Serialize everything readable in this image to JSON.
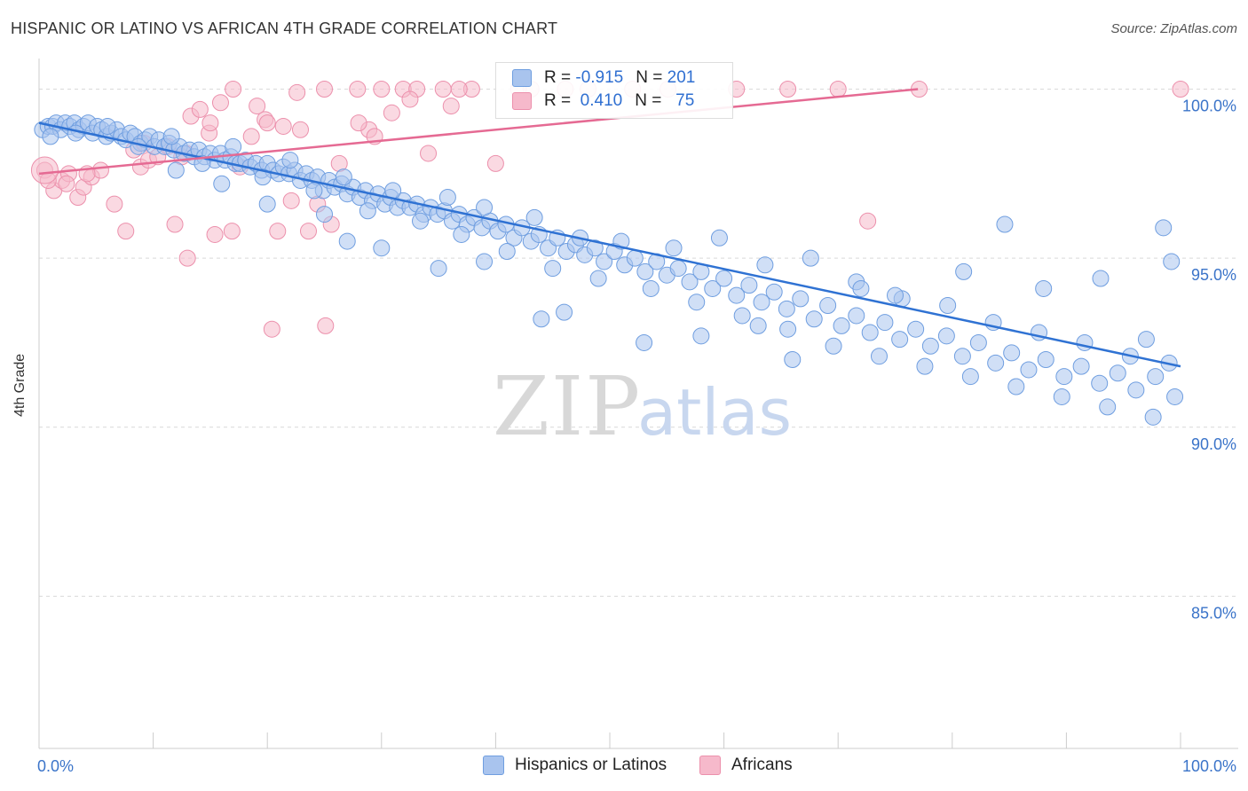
{
  "title": "HISPANIC OR LATINO VS AFRICAN 4TH GRADE CORRELATION CHART",
  "source": "Source: ZipAtlas.com",
  "watermark": {
    "zip": "ZIP",
    "atlas": "atlas"
  },
  "colors": {
    "blue_fill": "#a9c4ee",
    "blue_stroke": "#6f9ee0",
    "blue_line": "#2f72d3",
    "pink_fill": "#f6b9cb",
    "pink_stroke": "#ec90ac",
    "pink_line": "#e56a93",
    "label_blue": "#3b74c9",
    "grid": "#d9d9d9"
  },
  "legend": {
    "rows": [
      {
        "r_label": "R = ",
        "r_value": "-0.915",
        "n_label": "N = ",
        "n_value": "201"
      },
      {
        "r_label": "R = ",
        "r_value": " 0.410",
        "n_label": "N = ",
        "n_value": "  75"
      }
    ]
  },
  "bottom_legend": [
    "Hispanics or Latinos",
    "Africans"
  ],
  "chart_data": {
    "type": "scatter",
    "ylabel": "4th Grade",
    "xlim": [
      0,
      100
    ],
    "ylim": [
      80.5,
      100.8
    ],
    "x_tick_labels": [
      "0.0%",
      "100.0%"
    ],
    "y_ticks": [
      85,
      90,
      95,
      100
    ],
    "y_tick_labels": [
      "85.0%",
      "90.0%",
      "95.0%",
      "100.0%"
    ],
    "grid": "horizontal dashed",
    "legend_position": "top-center",
    "series": [
      {
        "name": "Hispanics or Latinos",
        "color": "blue",
        "r": -0.915,
        "n": 201,
        "trend": {
          "x": [
            0,
            100
          ],
          "y": [
            99.0,
            91.8
          ]
        },
        "points": [
          [
            0.3,
            98.8
          ],
          [
            0.8,
            98.9
          ],
          [
            1.2,
            98.9
          ],
          [
            1.5,
            99.0
          ],
          [
            1.9,
            98.8
          ],
          [
            2.3,
            99.0
          ],
          [
            2.7,
            98.9
          ],
          [
            3.1,
            99.0
          ],
          [
            3.5,
            98.8
          ],
          [
            3.9,
            98.9
          ],
          [
            4.3,
            99.0
          ],
          [
            4.7,
            98.7
          ],
          [
            5.1,
            98.9
          ],
          [
            5.5,
            98.8
          ],
          [
            5.9,
            98.6
          ],
          [
            6.3,
            98.7
          ],
          [
            6.8,
            98.8
          ],
          [
            7.2,
            98.6
          ],
          [
            7.6,
            98.5
          ],
          [
            8.0,
            98.7
          ],
          [
            8.4,
            98.6
          ],
          [
            8.9,
            98.4
          ],
          [
            9.3,
            98.5
          ],
          [
            9.7,
            98.6
          ],
          [
            10.1,
            98.3
          ],
          [
            10.5,
            98.5
          ],
          [
            11.0,
            98.3
          ],
          [
            11.4,
            98.4
          ],
          [
            11.8,
            98.2
          ],
          [
            12.3,
            98.3
          ],
          [
            12.7,
            98.1
          ],
          [
            13.2,
            98.2
          ],
          [
            13.6,
            98.0
          ],
          [
            14.0,
            98.2
          ],
          [
            14.5,
            98.0
          ],
          [
            15.0,
            98.1
          ],
          [
            15.4,
            97.9
          ],
          [
            15.9,
            98.1
          ],
          [
            16.3,
            97.9
          ],
          [
            16.8,
            98.0
          ],
          [
            17.2,
            97.8
          ],
          [
            17.6,
            97.8
          ],
          [
            18.1,
            97.9
          ],
          [
            18.5,
            97.7
          ],
          [
            19.0,
            97.8
          ],
          [
            19.5,
            97.6
          ],
          [
            20.0,
            97.8
          ],
          [
            20.5,
            97.6
          ],
          [
            21.0,
            97.5
          ],
          [
            21.4,
            97.7
          ],
          [
            21.9,
            97.5
          ],
          [
            22.4,
            97.6
          ],
          [
            22.9,
            97.3
          ],
          [
            23.4,
            97.5
          ],
          [
            23.9,
            97.3
          ],
          [
            24.4,
            97.4
          ],
          [
            24.9,
            97.0
          ],
          [
            25.4,
            97.3
          ],
          [
            25.9,
            97.1
          ],
          [
            26.5,
            97.2
          ],
          [
            27.0,
            96.9
          ],
          [
            27.5,
            97.1
          ],
          [
            28.1,
            96.8
          ],
          [
            28.6,
            97.0
          ],
          [
            29.2,
            96.7
          ],
          [
            29.7,
            96.9
          ],
          [
            30.3,
            96.6
          ],
          [
            30.8,
            96.8
          ],
          [
            31.4,
            96.5
          ],
          [
            31.9,
            96.7
          ],
          [
            32.5,
            96.5
          ],
          [
            33.1,
            96.6
          ],
          [
            33.7,
            96.3
          ],
          [
            34.3,
            96.5
          ],
          [
            34.9,
            96.3
          ],
          [
            35.5,
            96.4
          ],
          [
            36.2,
            96.1
          ],
          [
            36.8,
            96.3
          ],
          [
            37.5,
            96.0
          ],
          [
            38.1,
            96.2
          ],
          [
            38.8,
            95.9
          ],
          [
            39.5,
            96.1
          ],
          [
            40.2,
            95.8
          ],
          [
            40.9,
            96.0
          ],
          [
            41.6,
            95.6
          ],
          [
            42.3,
            95.9
          ],
          [
            43.1,
            95.5
          ],
          [
            43.8,
            95.7
          ],
          [
            44.6,
            95.3
          ],
          [
            45.4,
            95.6
          ],
          [
            46.2,
            95.2
          ],
          [
            47.0,
            95.4
          ],
          [
            47.8,
            95.1
          ],
          [
            48.7,
            95.3
          ],
          [
            49.5,
            94.9
          ],
          [
            50.4,
            95.2
          ],
          [
            51.3,
            94.8
          ],
          [
            52.2,
            95.0
          ],
          [
            53.1,
            94.6
          ],
          [
            54.1,
            94.9
          ],
          [
            55.0,
            94.5
          ],
          [
            56.0,
            94.7
          ],
          [
            57.0,
            94.3
          ],
          [
            58.0,
            94.6
          ],
          [
            59.0,
            94.1
          ],
          [
            60.0,
            94.4
          ],
          [
            61.1,
            93.9
          ],
          [
            62.2,
            94.2
          ],
          [
            63.3,
            93.7
          ],
          [
            64.4,
            94.0
          ],
          [
            65.5,
            93.5
          ],
          [
            66.7,
            93.8
          ],
          [
            67.9,
            93.2
          ],
          [
            69.1,
            93.6
          ],
          [
            70.3,
            93.0
          ],
          [
            71.6,
            93.3
          ],
          [
            72.8,
            92.8
          ],
          [
            74.1,
            93.1
          ],
          [
            75.4,
            92.6
          ],
          [
            76.8,
            92.9
          ],
          [
            78.1,
            92.4
          ],
          [
            79.5,
            92.7
          ],
          [
            80.9,
            92.1
          ],
          [
            82.3,
            92.5
          ],
          [
            83.8,
            91.9
          ],
          [
            85.2,
            92.2
          ],
          [
            86.7,
            91.7
          ],
          [
            88.2,
            92.0
          ],
          [
            89.8,
            91.5
          ],
          [
            91.3,
            91.8
          ],
          [
            92.9,
            91.3
          ],
          [
            94.5,
            91.6
          ],
          [
            96.1,
            91.1
          ],
          [
            97.8,
            91.5
          ],
          [
            99.5,
            90.9
          ],
          [
            1.0,
            98.6
          ],
          [
            3.2,
            98.7
          ],
          [
            6.0,
            98.9
          ],
          [
            8.7,
            98.3
          ],
          [
            11.6,
            98.6
          ],
          [
            14.3,
            97.8
          ],
          [
            17.0,
            98.3
          ],
          [
            19.6,
            97.4
          ],
          [
            22.0,
            97.9
          ],
          [
            24.1,
            97.0
          ],
          [
            26.7,
            97.4
          ],
          [
            28.8,
            96.4
          ],
          [
            31.0,
            97.0
          ],
          [
            33.4,
            96.1
          ],
          [
            35.8,
            96.8
          ],
          [
            37.0,
            95.7
          ],
          [
            39.0,
            96.5
          ],
          [
            41.0,
            95.2
          ],
          [
            43.4,
            96.2
          ],
          [
            45.0,
            94.7
          ],
          [
            47.4,
            95.6
          ],
          [
            49.0,
            94.4
          ],
          [
            51.0,
            95.5
          ],
          [
            53.6,
            94.1
          ],
          [
            55.6,
            95.3
          ],
          [
            57.6,
            93.7
          ],
          [
            59.6,
            95.6
          ],
          [
            61.6,
            93.3
          ],
          [
            63.6,
            94.8
          ],
          [
            65.6,
            92.9
          ],
          [
            67.6,
            95.0
          ],
          [
            69.6,
            92.4
          ],
          [
            71.6,
            94.3
          ],
          [
            73.6,
            92.1
          ],
          [
            75.6,
            93.8
          ],
          [
            77.6,
            91.8
          ],
          [
            79.6,
            93.6
          ],
          [
            81.6,
            91.5
          ],
          [
            83.6,
            93.1
          ],
          [
            85.6,
            91.2
          ],
          [
            87.6,
            92.8
          ],
          [
            89.6,
            90.9
          ],
          [
            91.6,
            92.5
          ],
          [
            93.6,
            90.6
          ],
          [
            95.6,
            92.1
          ],
          [
            97.6,
            90.3
          ],
          [
            99.0,
            91.9
          ],
          [
            84.6,
            96.0
          ],
          [
            98.5,
            95.9
          ],
          [
            99.2,
            94.9
          ],
          [
            97.0,
            92.6
          ],
          [
            93.0,
            94.4
          ],
          [
            88.0,
            94.1
          ],
          [
            81.0,
            94.6
          ],
          [
            75.0,
            93.9
          ],
          [
            72.0,
            94.1
          ],
          [
            66.0,
            92.0
          ],
          [
            63.0,
            93.0
          ],
          [
            58.0,
            92.7
          ],
          [
            53.0,
            92.5
          ],
          [
            46.0,
            93.4
          ],
          [
            44.0,
            93.2
          ],
          [
            39.0,
            94.9
          ],
          [
            35.0,
            94.7
          ],
          [
            30.0,
            95.3
          ],
          [
            27.0,
            95.5
          ],
          [
            25.0,
            96.3
          ],
          [
            20.0,
            96.6
          ],
          [
            16.0,
            97.2
          ],
          [
            12.0,
            97.6
          ]
        ]
      },
      {
        "name": "Africans",
        "color": "pink",
        "r": 0.41,
        "n": 75,
        "trend": {
          "x": [
            0,
            77
          ],
          "y": [
            97.5,
            100.0
          ]
        },
        "points": [
          [
            0.5,
            97.6
          ],
          [
            1.3,
            97.0
          ],
          [
            2.0,
            97.3
          ],
          [
            2.6,
            97.5
          ],
          [
            3.4,
            96.8
          ],
          [
            3.9,
            97.1
          ],
          [
            4.6,
            97.4
          ],
          [
            5.4,
            97.6
          ],
          [
            6.6,
            96.6
          ],
          [
            7.6,
            95.8
          ],
          [
            8.3,
            98.2
          ],
          [
            8.9,
            97.7
          ],
          [
            9.6,
            97.9
          ],
          [
            10.4,
            98.0
          ],
          [
            11.3,
            98.3
          ],
          [
            11.9,
            96.0
          ],
          [
            12.9,
            98.1
          ],
          [
            13.3,
            99.2
          ],
          [
            14.1,
            99.4
          ],
          [
            14.9,
            98.7
          ],
          [
            15.4,
            95.7
          ],
          [
            15.9,
            99.6
          ],
          [
            16.9,
            95.8
          ],
          [
            17.6,
            97.7
          ],
          [
            18.6,
            98.6
          ],
          [
            19.1,
            99.5
          ],
          [
            19.8,
            99.1
          ],
          [
            20.4,
            92.9
          ],
          [
            20.9,
            95.8
          ],
          [
            21.4,
            98.9
          ],
          [
            22.1,
            96.7
          ],
          [
            22.9,
            98.8
          ],
          [
            23.6,
            95.8
          ],
          [
            24.4,
            96.6
          ],
          [
            25.1,
            93.0
          ],
          [
            25.6,
            96.0
          ],
          [
            26.3,
            97.8
          ],
          [
            27.9,
            100.0
          ],
          [
            28.9,
            98.8
          ],
          [
            29.4,
            98.6
          ],
          [
            30.9,
            99.3
          ],
          [
            31.9,
            100.0
          ],
          [
            33.1,
            100.0
          ],
          [
            34.1,
            98.1
          ],
          [
            35.4,
            100.0
          ],
          [
            36.1,
            99.5
          ],
          [
            37.9,
            100.0
          ],
          [
            40.0,
            97.8
          ],
          [
            43.1,
            100.0
          ],
          [
            46.1,
            100.0
          ],
          [
            48.1,
            100.0
          ],
          [
            55.1,
            100.0
          ],
          [
            61.1,
            100.0
          ],
          [
            65.6,
            100.0
          ],
          [
            72.6,
            96.1
          ],
          [
            77.1,
            100.0
          ],
          [
            0.8,
            97.3
          ],
          [
            2.4,
            97.2
          ],
          [
            4.2,
            97.5
          ],
          [
            9.2,
            98.4
          ],
          [
            12.5,
            98.0
          ],
          [
            13.0,
            95.0
          ],
          [
            15.0,
            99.0
          ],
          [
            17.0,
            100.0
          ],
          [
            20.0,
            99.0
          ],
          [
            22.6,
            99.9
          ],
          [
            25.0,
            100.0
          ],
          [
            28.0,
            99.0
          ],
          [
            30.0,
            100.0
          ],
          [
            32.5,
            99.7
          ],
          [
            36.8,
            100.0
          ],
          [
            42.0,
            100.0
          ],
          [
            52.0,
            100.0
          ],
          [
            70.0,
            100.0
          ],
          [
            100.0,
            100.0
          ]
        ]
      }
    ]
  }
}
